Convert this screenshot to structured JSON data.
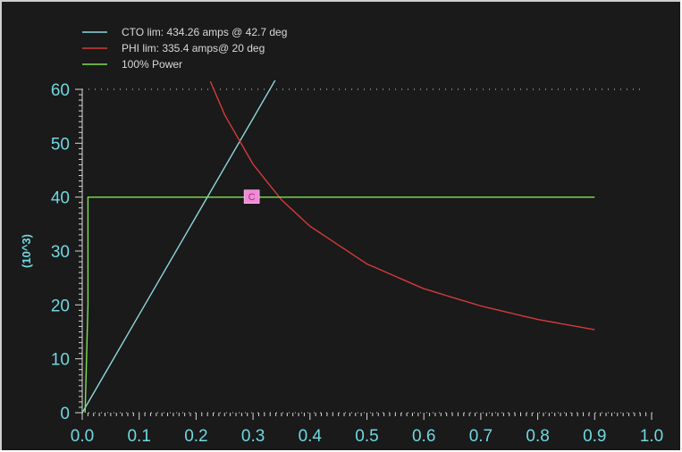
{
  "chart_data": {
    "type": "line",
    "ylabel": "(10^3)",
    "xlabel": "",
    "title": "",
    "xlim": [
      0.0,
      1.0
    ],
    "ylim": [
      0,
      60
    ],
    "x_ticks": [
      "0.0",
      "0.1",
      "0.2",
      "0.3",
      "0.4",
      "0.5",
      "0.6",
      "0.7",
      "0.8",
      "0.9",
      "1.0"
    ],
    "y_ticks": [
      "0",
      "10",
      "20",
      "30",
      "40",
      "50",
      "60"
    ],
    "grid": false,
    "legend_position": "top-left",
    "series": [
      {
        "name": "CTO lim: 434.26 amps @ 42.7 deg",
        "color": "#8fd6dc",
        "x": [
          0.0,
          0.1,
          0.2,
          0.3,
          0.34
        ],
        "y": [
          0,
          18.2,
          36.4,
          54.6,
          61.9
        ]
      },
      {
        "name": "PHI lim: 335.4 amps@ 20 deg",
        "color": "#d43a3a",
        "x": [
          0.225,
          0.25,
          0.3,
          0.35,
          0.4,
          0.5,
          0.6,
          0.7,
          0.8,
          0.9
        ],
        "y": [
          61.5,
          55.3,
          46.1,
          39.5,
          34.6,
          27.6,
          23.0,
          19.8,
          17.3,
          15.4
        ]
      },
      {
        "name": "100% Power",
        "color": "#7fe04f",
        "x": [
          0.005,
          0.01,
          0.01,
          0.9
        ],
        "y": [
          0,
          20,
          40,
          40
        ]
      }
    ],
    "annotations": [
      {
        "text": "C",
        "x": 0.3,
        "y": 40,
        "color": "#f08ad8"
      }
    ]
  }
}
